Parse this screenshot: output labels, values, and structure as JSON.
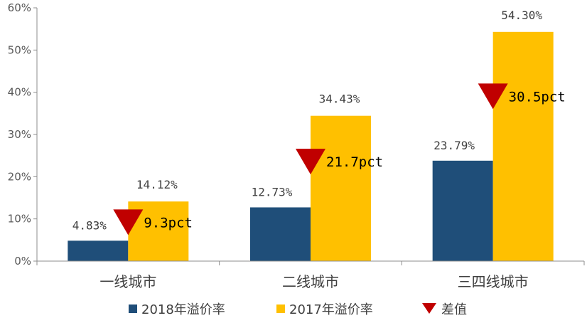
{
  "chart_data": {
    "type": "bar",
    "categories": [
      "一线城市",
      "二线城市",
      "三四线城市"
    ],
    "series": [
      {
        "name": "2018年溢价率",
        "values": [
          4.83,
          12.73,
          23.79
        ],
        "labels": [
          "4.83%",
          "12.73%",
          "23.79%"
        ],
        "color": "#1F4E79"
      },
      {
        "name": "2017年溢价率",
        "values": [
          14.12,
          34.43,
          54.3
        ],
        "labels": [
          "14.12%",
          "34.43%",
          "54.30%"
        ],
        "color": "#FFC000"
      }
    ],
    "difference": {
      "name": "差值",
      "labels": [
        "9.3pct",
        "21.7pct",
        "30.5pct"
      ],
      "color": "#C00000"
    },
    "ylim": [
      0,
      60
    ],
    "yticks": [
      0,
      10,
      20,
      30,
      40,
      50,
      60
    ],
    "ytick_labels": [
      "0%",
      "10%",
      "20%",
      "30%",
      "40%",
      "50%",
      "60%"
    ],
    "grid": false,
    "legend_position": "bottom",
    "title": "",
    "xlabel": "",
    "ylabel": ""
  }
}
